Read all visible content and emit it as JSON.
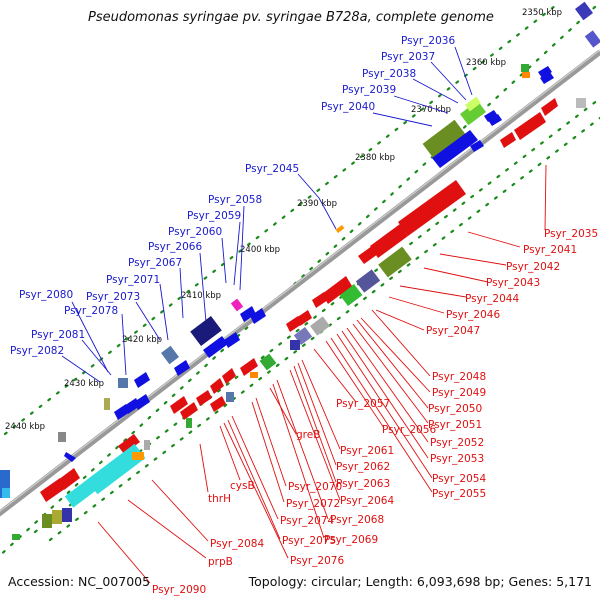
{
  "title": "Pseudomonas syringae pv. syringae B728a, complete genome",
  "footer": {
    "accession": "Accession: NC_007005",
    "topology": "Topology: circular; Length: 6,093,698 bp; Genes: 5,171"
  },
  "scale_ticks": [
    "2350 kbp",
    "2360 kbp",
    "2370 kbp",
    "2380 kbp",
    "2390 kbp",
    "2400 kbp",
    "2410 kbp",
    "2420 kbp",
    "2430 kbp",
    "2440 kbp"
  ],
  "labels_outer": [
    "Psyr_2036",
    "Psyr_2037",
    "Psyr_2038",
    "Psyr_2039",
    "Psyr_2040",
    "Psyr_2045",
    "Psyr_2058",
    "Psyr_2059",
    "Psyr_2060",
    "Psyr_2066",
    "Psyr_2067",
    "Psyr_2071",
    "Psyr_2073",
    "Psyr_2078",
    "Psyr_2080",
    "Psyr_2081",
    "Psyr_2082"
  ],
  "labels_inner": [
    "Psyr_2035",
    "Psyr_2041",
    "Psyr_2042",
    "Psyr_2043",
    "Psyr_2044",
    "Psyr_2046",
    "Psyr_2047",
    "Psyr_2048",
    "Psyr_2049",
    "Psyr_2050",
    "Psyr_2051",
    "Psyr_2052",
    "Psyr_2053",
    "Psyr_2054",
    "Psyr_2055",
    "Psyr_2056",
    "Psyr_2057",
    "Psyr_2061",
    "Psyr_2062",
    "Psyr_2063",
    "Psyr_2064",
    "greB",
    "Psyr_2068",
    "Psyr_2069",
    "Psyr_2070",
    "Psyr_2072",
    "Psyr_2074",
    "Psyr_2075",
    "Psyr_2076",
    "cysB",
    "thrH",
    "Psyr_2084",
    "prpB",
    "Psyr_2090"
  ],
  "colors": {
    "outer_label": "#1a1acc",
    "inner_label": "#e01010",
    "forward_gene": "#1010e0",
    "reverse_gene": "#e01010",
    "backbone": "#888888",
    "tick_dots": "#1a8a1a"
  }
}
